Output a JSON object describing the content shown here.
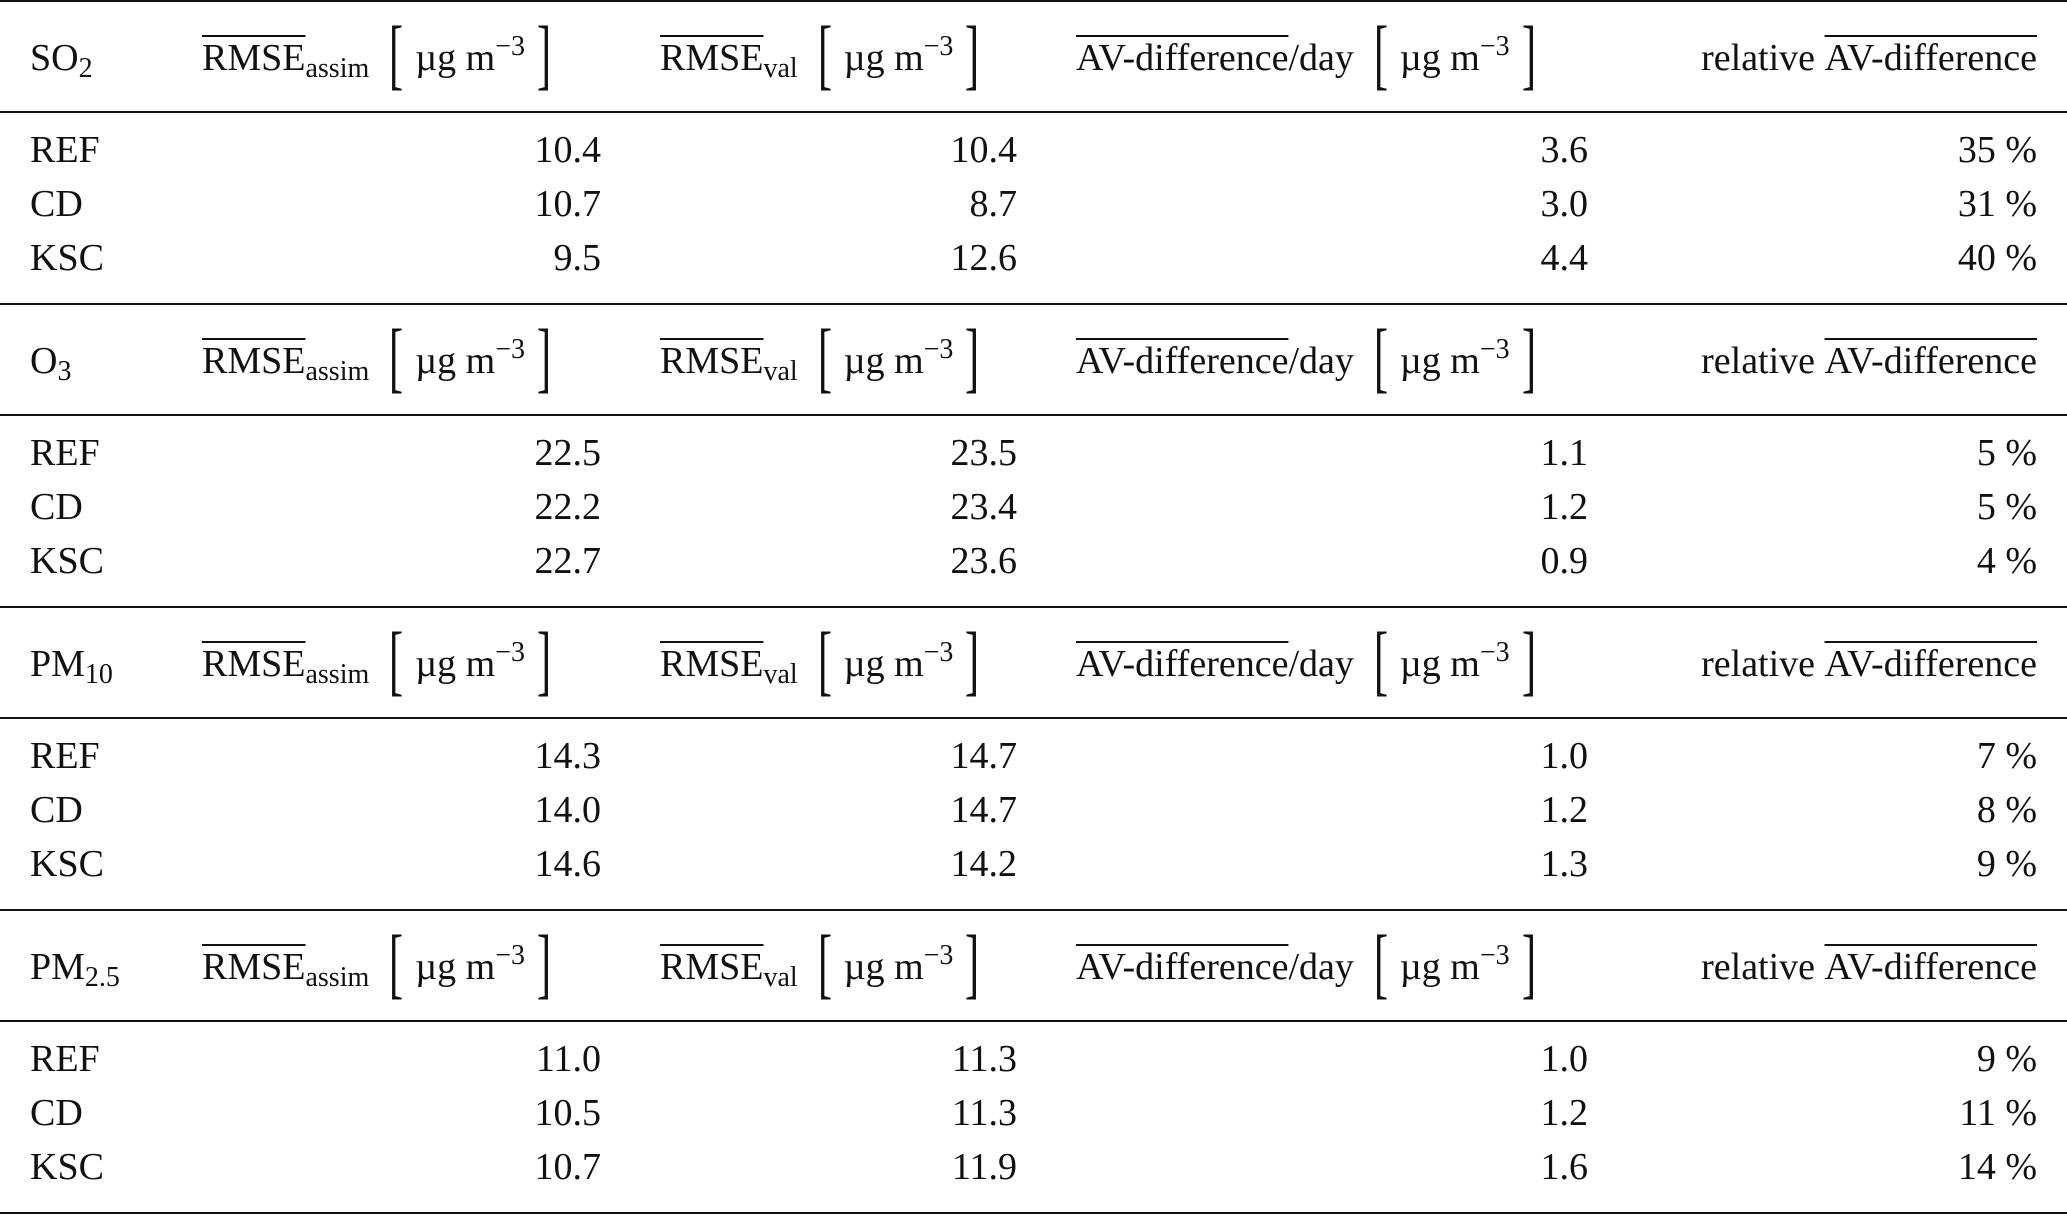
{
  "header_labels": {
    "rmse_assim_main": "RMSE",
    "rmse_assim_sub": "assim",
    "rmse_val_main": "RMSE",
    "rmse_val_sub": "val",
    "av_diff_main": "AV-difference",
    "av_diff_suffix": "/day",
    "relative_prefix": "relative",
    "relative_main": "AV-difference",
    "unit_text": "µg m",
    "unit_exp": "−3",
    "bracket_open": "[",
    "bracket_close": "]"
  },
  "sections": [
    {
      "species_main": "SO",
      "species_sub": "2",
      "rows": [
        {
          "label": "REF",
          "rmse_assim": "10.4",
          "rmse_val": "10.4",
          "av_diff_day": "3.6",
          "relative": "35 %"
        },
        {
          "label": "CD",
          "rmse_assim": "10.7",
          "rmse_val": "8.7",
          "av_diff_day": "3.0",
          "relative": "31 %"
        },
        {
          "label": "KSC",
          "rmse_assim": "9.5",
          "rmse_val": "12.6",
          "av_diff_day": "4.4",
          "relative": "40 %"
        }
      ]
    },
    {
      "species_main": "O",
      "species_sub": "3",
      "rows": [
        {
          "label": "REF",
          "rmse_assim": "22.5",
          "rmse_val": "23.5",
          "av_diff_day": "1.1",
          "relative": "5 %"
        },
        {
          "label": "CD",
          "rmse_assim": "22.2",
          "rmse_val": "23.4",
          "av_diff_day": "1.2",
          "relative": "5 %"
        },
        {
          "label": "KSC",
          "rmse_assim": "22.7",
          "rmse_val": "23.6",
          "av_diff_day": "0.9",
          "relative": "4 %"
        }
      ]
    },
    {
      "species_main": "PM",
      "species_sub": "10",
      "rows": [
        {
          "label": "REF",
          "rmse_assim": "14.3",
          "rmse_val": "14.7",
          "av_diff_day": "1.0",
          "relative": "7 %"
        },
        {
          "label": "CD",
          "rmse_assim": "14.0",
          "rmse_val": "14.7",
          "av_diff_day": "1.2",
          "relative": "8 %"
        },
        {
          "label": "KSC",
          "rmse_assim": "14.6",
          "rmse_val": "14.2",
          "av_diff_day": "1.3",
          "relative": "9 %"
        }
      ]
    },
    {
      "species_main": "PM",
      "species_sub": "2.5",
      "rows": [
        {
          "label": "REF",
          "rmse_assim": "11.0",
          "rmse_val": "11.3",
          "av_diff_day": "1.0",
          "relative": "9 %"
        },
        {
          "label": "CD",
          "rmse_assim": "10.5",
          "rmse_val": "11.3",
          "av_diff_day": "1.2",
          "relative": "11 %"
        },
        {
          "label": "KSC",
          "rmse_assim": "10.7",
          "rmse_val": "11.9",
          "av_diff_day": "1.6",
          "relative": "14 %"
        }
      ]
    }
  ]
}
